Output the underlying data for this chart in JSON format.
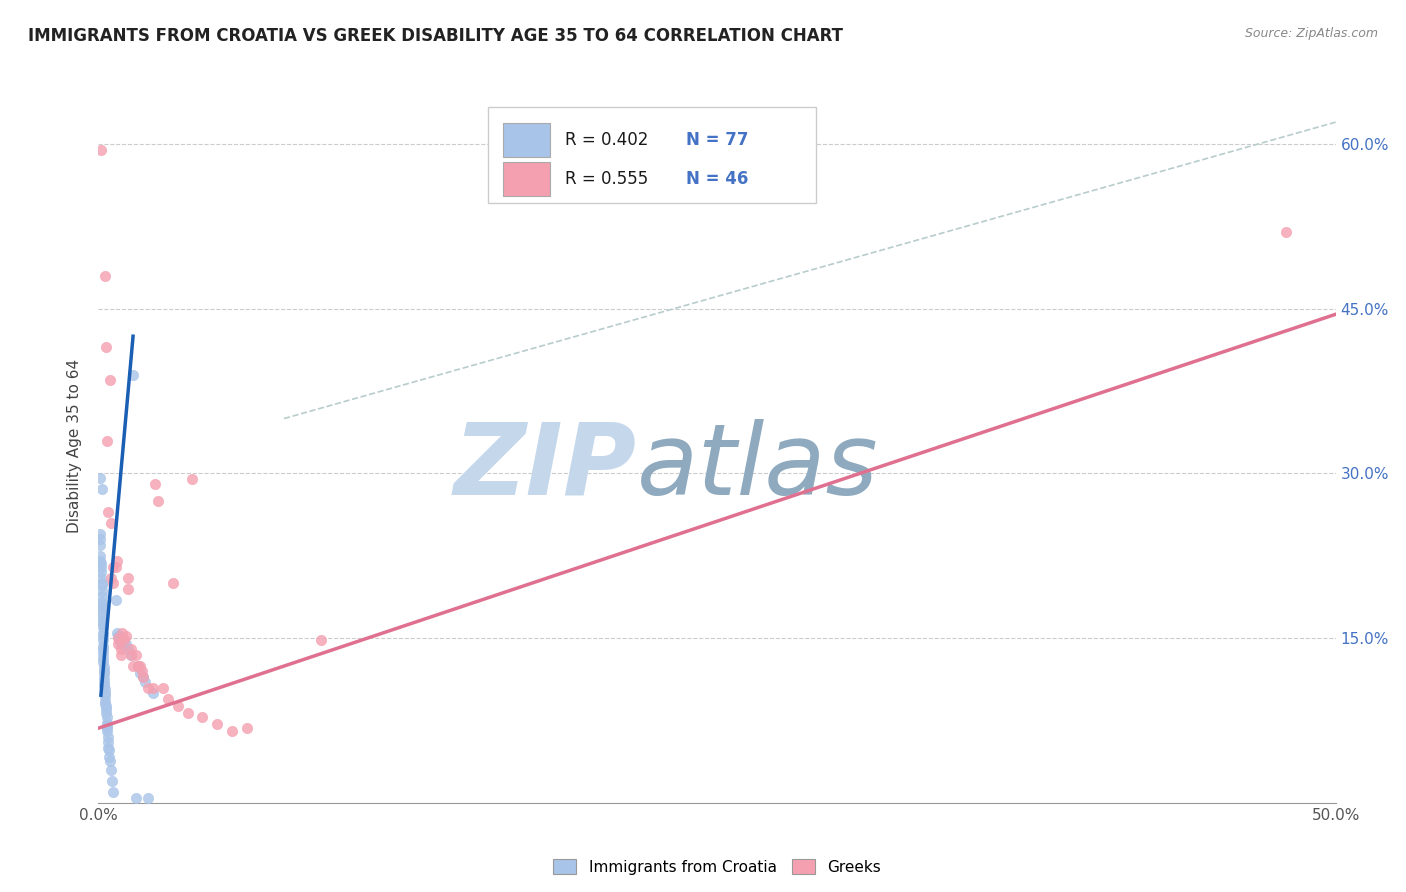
{
  "title": "IMMIGRANTS FROM CROATIA VS GREEK DISABILITY AGE 35 TO 64 CORRELATION CHART",
  "source": "Source: ZipAtlas.com",
  "ylabel_label": "Disability Age 35 to 64",
  "x_min": 0.0,
  "x_max": 0.5,
  "y_min": 0.0,
  "y_max": 0.65,
  "x_ticks": [
    0.0,
    0.1,
    0.2,
    0.3,
    0.4,
    0.5
  ],
  "x_tick_labels_left": "0.0%",
  "x_tick_labels_right": "50.0%",
  "y_ticks": [
    0.0,
    0.15,
    0.3,
    0.45,
    0.6
  ],
  "y_tick_labels": [
    "",
    "15.0%",
    "30.0%",
    "45.0%",
    "60.0%"
  ],
  "R_croatia": 0.402,
  "N_croatia": 77,
  "R_greek": 0.555,
  "N_greek": 46,
  "color_croatia": "#a8c4e8",
  "color_greek": "#f4a0b0",
  "trendline_croatia_color": "#1a5fb4",
  "trendline_greek_color": "#e07090",
  "diagonal_color": "#b8cccc",
  "watermark_zip": "ZIP",
  "watermark_atlas": "atlas",
  "watermark_color_zip": "#c5d8eb",
  "watermark_color_atlas": "#8faabf",
  "legend_box_color": "#f0f4f8",
  "croatia_points": [
    [
      0.0008,
      0.296
    ],
    [
      0.0015,
      0.286
    ],
    [
      0.0005,
      0.245
    ],
    [
      0.0006,
      0.24
    ],
    [
      0.0006,
      0.235
    ],
    [
      0.0007,
      0.225
    ],
    [
      0.0008,
      0.22
    ],
    [
      0.0009,
      0.218
    ],
    [
      0.001,
      0.215
    ],
    [
      0.0012,
      0.21
    ],
    [
      0.0012,
      0.205
    ],
    [
      0.0013,
      0.2
    ],
    [
      0.0013,
      0.198
    ],
    [
      0.0014,
      0.193
    ],
    [
      0.0014,
      0.188
    ],
    [
      0.0015,
      0.183
    ],
    [
      0.0015,
      0.18
    ],
    [
      0.0015,
      0.177
    ],
    [
      0.0016,
      0.173
    ],
    [
      0.0016,
      0.17
    ],
    [
      0.0016,
      0.166
    ],
    [
      0.0017,
      0.163
    ],
    [
      0.0017,
      0.16
    ],
    [
      0.0017,
      0.155
    ],
    [
      0.0018,
      0.152
    ],
    [
      0.0018,
      0.148
    ],
    [
      0.0019,
      0.143
    ],
    [
      0.0019,
      0.14
    ],
    [
      0.002,
      0.136
    ],
    [
      0.002,
      0.132
    ],
    [
      0.002,
      0.128
    ],
    [
      0.0021,
      0.124
    ],
    [
      0.0022,
      0.12
    ],
    [
      0.0022,
      0.118
    ],
    [
      0.0023,
      0.114
    ],
    [
      0.0024,
      0.11
    ],
    [
      0.0024,
      0.107
    ],
    [
      0.0025,
      0.104
    ],
    [
      0.0026,
      0.1
    ],
    [
      0.0026,
      0.097
    ],
    [
      0.0027,
      0.093
    ],
    [
      0.0028,
      0.09
    ],
    [
      0.003,
      0.088
    ],
    [
      0.003,
      0.085
    ],
    [
      0.0032,
      0.082
    ],
    [
      0.0033,
      0.078
    ],
    [
      0.0034,
      0.073
    ],
    [
      0.0035,
      0.07
    ],
    [
      0.0035,
      0.068
    ],
    [
      0.0036,
      0.065
    ],
    [
      0.0038,
      0.06
    ],
    [
      0.004,
      0.055
    ],
    [
      0.004,
      0.05
    ],
    [
      0.0042,
      0.048
    ],
    [
      0.0043,
      0.042
    ],
    [
      0.0045,
      0.038
    ],
    [
      0.005,
      0.03
    ],
    [
      0.0055,
      0.02
    ],
    [
      0.006,
      0.01
    ],
    [
      0.007,
      0.185
    ],
    [
      0.0075,
      0.155
    ],
    [
      0.008,
      0.152
    ],
    [
      0.0085,
      0.148
    ],
    [
      0.009,
      0.145
    ],
    [
      0.0095,
      0.15
    ],
    [
      0.01,
      0.148
    ],
    [
      0.011,
      0.145
    ],
    [
      0.012,
      0.14
    ],
    [
      0.013,
      0.135
    ],
    [
      0.014,
      0.39
    ],
    [
      0.015,
      0.004
    ],
    [
      0.016,
      0.125
    ],
    [
      0.017,
      0.118
    ],
    [
      0.018,
      0.115
    ],
    [
      0.019,
      0.11
    ],
    [
      0.02,
      0.004
    ],
    [
      0.022,
      0.1
    ]
  ],
  "greek_points": [
    [
      0.001,
      0.595
    ],
    [
      0.0025,
      0.48
    ],
    [
      0.003,
      0.415
    ],
    [
      0.0035,
      0.33
    ],
    [
      0.004,
      0.265
    ],
    [
      0.0045,
      0.385
    ],
    [
      0.005,
      0.255
    ],
    [
      0.005,
      0.205
    ],
    [
      0.006,
      0.2
    ],
    [
      0.006,
      0.215
    ],
    [
      0.007,
      0.215
    ],
    [
      0.0075,
      0.22
    ],
    [
      0.008,
      0.15
    ],
    [
      0.008,
      0.145
    ],
    [
      0.009,
      0.14
    ],
    [
      0.009,
      0.135
    ],
    [
      0.0095,
      0.155
    ],
    [
      0.01,
      0.15
    ],
    [
      0.0105,
      0.148
    ],
    [
      0.011,
      0.152
    ],
    [
      0.012,
      0.195
    ],
    [
      0.012,
      0.205
    ],
    [
      0.013,
      0.14
    ],
    [
      0.013,
      0.135
    ],
    [
      0.014,
      0.125
    ],
    [
      0.015,
      0.135
    ],
    [
      0.016,
      0.125
    ],
    [
      0.017,
      0.125
    ],
    [
      0.0175,
      0.12
    ],
    [
      0.018,
      0.115
    ],
    [
      0.02,
      0.105
    ],
    [
      0.022,
      0.105
    ],
    [
      0.023,
      0.29
    ],
    [
      0.024,
      0.275
    ],
    [
      0.026,
      0.105
    ],
    [
      0.028,
      0.095
    ],
    [
      0.03,
      0.2
    ],
    [
      0.032,
      0.088
    ],
    [
      0.036,
      0.082
    ],
    [
      0.038,
      0.295
    ],
    [
      0.042,
      0.078
    ],
    [
      0.048,
      0.072
    ],
    [
      0.054,
      0.065
    ],
    [
      0.06,
      0.068
    ],
    [
      0.09,
      0.148
    ],
    [
      0.48,
      0.52
    ]
  ],
  "trendline_croatia": [
    [
      0.001,
      0.098
    ],
    [
      0.014,
      0.425
    ]
  ],
  "trendline_greek": [
    [
      0.0,
      0.068
    ],
    [
      0.5,
      0.445
    ]
  ],
  "diagonal_line": [
    [
      0.075,
      0.35
    ],
    [
      0.5,
      0.62
    ]
  ]
}
